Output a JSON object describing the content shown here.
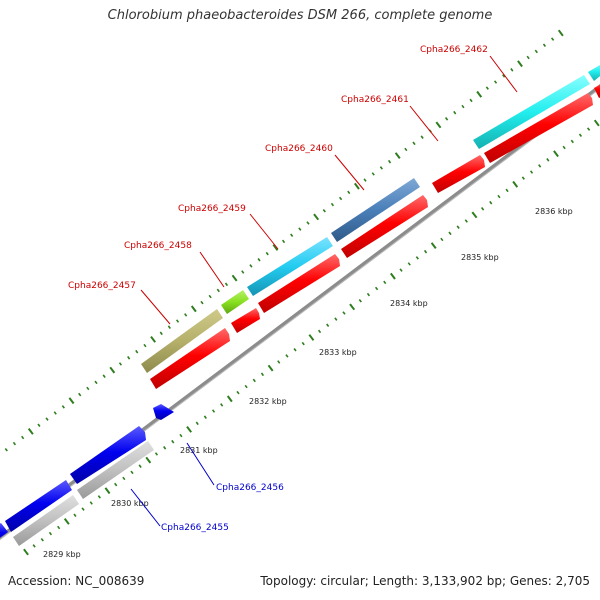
{
  "title": "Chlorobium phaeobacteroides DSM 266, complete genome",
  "footer": {
    "accession": "Accession: NC_008639",
    "topology": "Topology: circular; Length: 3,133,902 bp; Genes: 2,705"
  },
  "ticks": [
    {
      "label": "2829 kbp"
    },
    {
      "label": "2830 kbp"
    },
    {
      "label": "2831 kbp"
    },
    {
      "label": "2832 kbp"
    },
    {
      "label": "2833 kbp"
    },
    {
      "label": "2834 kbp"
    },
    {
      "label": "2835 kbp"
    },
    {
      "label": "2836 kbp"
    }
  ],
  "genes": [
    {
      "name": "Cpha266_2455",
      "strand": "reverse",
      "color": "#0000ee"
    },
    {
      "name": "Cpha266_2456",
      "strand": "reverse",
      "color": "#0000ee"
    },
    {
      "name": "Cpha266_2457",
      "strand": "forward",
      "color": "#ff0000"
    },
    {
      "name": "Cpha266_2458",
      "strand": "forward",
      "color": "#ff0000"
    },
    {
      "name": "Cpha266_2459",
      "strand": "forward",
      "color": "#ff0000"
    },
    {
      "name": "Cpha266_2460",
      "strand": "forward",
      "color": "#ff0000"
    },
    {
      "name": "Cpha266_2461",
      "strand": "forward",
      "color": "#ff0000"
    },
    {
      "name": "Cpha266_2462",
      "strand": "forward",
      "color": "#ff0000"
    }
  ],
  "colors": {
    "forward_gene": "#ff0000",
    "reverse_gene": "#0000ee",
    "backbone": "#8c8c8c",
    "tick": "#2e7d1e",
    "label_forward": "#cc0000",
    "label_reverse": "#0000cc",
    "cog_olive": "#b5b06a",
    "cog_lime": "#88e020",
    "cog_cyan": "#22ccf0",
    "cog_steel": "#4a7fb8",
    "cog_aqua": "#22eeee",
    "cog_grey": "#c0c0c0"
  }
}
